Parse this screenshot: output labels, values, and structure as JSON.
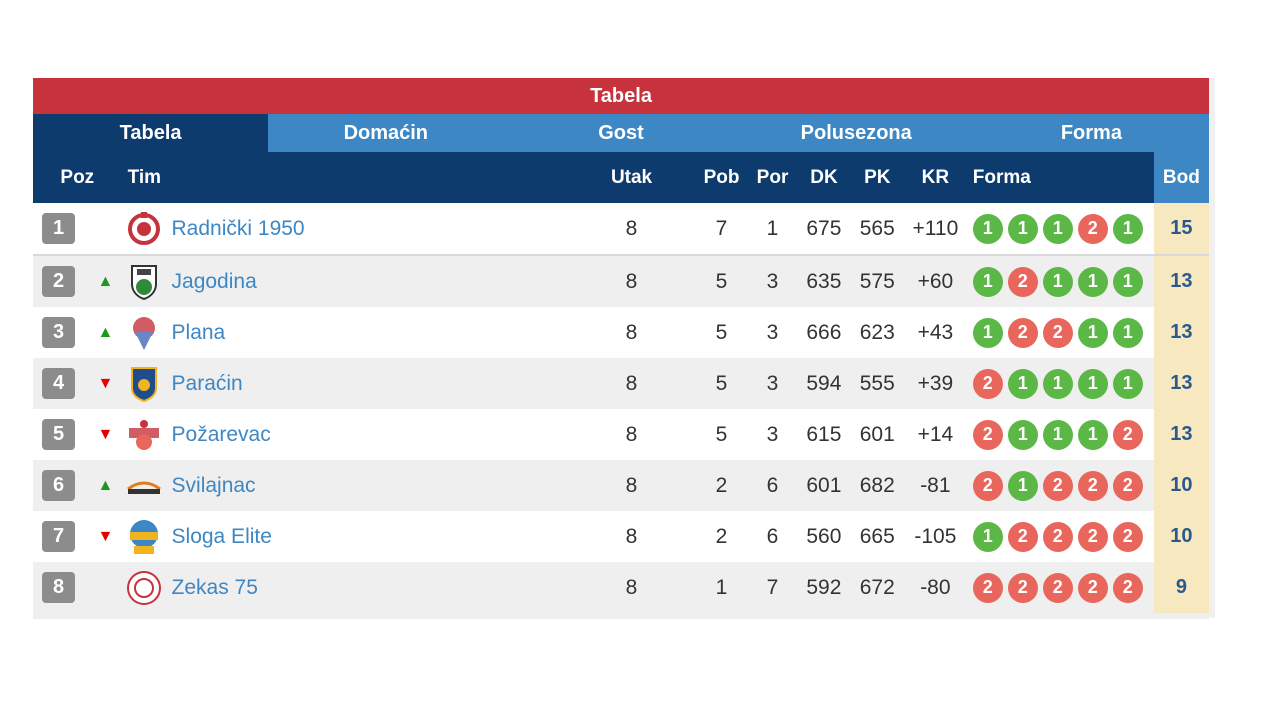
{
  "title": "Tabela",
  "tabs": [
    {
      "label": "Tabela",
      "active": true
    },
    {
      "label": "Domaćin",
      "active": false
    },
    {
      "label": "Gost",
      "active": false
    },
    {
      "label": "Polusezona",
      "active": false
    },
    {
      "label": "Forma",
      "active": false
    }
  ],
  "headers": {
    "poz": "Poz",
    "tim": "Tim",
    "utak": "Utak",
    "pob": "Pob",
    "por": "Por",
    "dk": "DK",
    "pk": "PK",
    "kr": "KR",
    "forma": "Forma",
    "bod": "Bod"
  },
  "colors": {
    "title_bar": "#c6333d",
    "tab_bar": "#3d87c4",
    "header": "#0e3b6e",
    "win": "#5bb846",
    "loss": "#e8665c",
    "points_bg": "#f7e8c0"
  },
  "rows": [
    {
      "pos": "1",
      "trend": "",
      "team": "Radnički 1950",
      "logo": "radnicki-logo-icon",
      "utak": "8",
      "pob": "7",
      "por": "1",
      "dk": "675",
      "pk": "565",
      "kr": "+110",
      "form": [
        "1",
        "1",
        "1",
        "2",
        "1"
      ],
      "bod": "15"
    },
    {
      "pos": "2",
      "trend": "up",
      "team": "Jagodina",
      "logo": "jagodina-logo-icon",
      "utak": "8",
      "pob": "5",
      "por": "3",
      "dk": "635",
      "pk": "575",
      "kr": "+60",
      "form": [
        "1",
        "2",
        "1",
        "1",
        "1"
      ],
      "bod": "13"
    },
    {
      "pos": "3",
      "trend": "up",
      "team": "Plana",
      "logo": "plana-logo-icon",
      "utak": "8",
      "pob": "5",
      "por": "3",
      "dk": "666",
      "pk": "623",
      "kr": "+43",
      "form": [
        "1",
        "2",
        "2",
        "1",
        "1"
      ],
      "bod": "13"
    },
    {
      "pos": "4",
      "trend": "down",
      "team": "Paraćin",
      "logo": "paracin-logo-icon",
      "utak": "8",
      "pob": "5",
      "por": "3",
      "dk": "594",
      "pk": "555",
      "kr": "+39",
      "form": [
        "2",
        "1",
        "1",
        "1",
        "1"
      ],
      "bod": "13"
    },
    {
      "pos": "5",
      "trend": "down",
      "team": "Požarevac",
      "logo": "pozarevac-logo-icon",
      "utak": "8",
      "pob": "5",
      "por": "3",
      "dk": "615",
      "pk": "601",
      "kr": "+14",
      "form": [
        "2",
        "1",
        "1",
        "1",
        "2"
      ],
      "bod": "13"
    },
    {
      "pos": "6",
      "trend": "up",
      "team": "Svilajnac",
      "logo": "svilajnac-logo-icon",
      "utak": "8",
      "pob": "2",
      "por": "6",
      "dk": "601",
      "pk": "682",
      "kr": "-81",
      "form": [
        "2",
        "1",
        "2",
        "2",
        "2"
      ],
      "bod": "10"
    },
    {
      "pos": "7",
      "trend": "down",
      "team": "Sloga Elite",
      "logo": "sloga-logo-icon",
      "utak": "8",
      "pob": "2",
      "por": "6",
      "dk": "560",
      "pk": "665",
      "kr": "-105",
      "form": [
        "1",
        "2",
        "2",
        "2",
        "2"
      ],
      "bod": "10"
    },
    {
      "pos": "8",
      "trend": "",
      "team": "Zekas 75",
      "logo": "zekas-logo-icon",
      "utak": "8",
      "pob": "1",
      "por": "7",
      "dk": "592",
      "pk": "672",
      "kr": "-80",
      "form": [
        "2",
        "2",
        "2",
        "2",
        "2"
      ],
      "bod": "9"
    }
  ]
}
